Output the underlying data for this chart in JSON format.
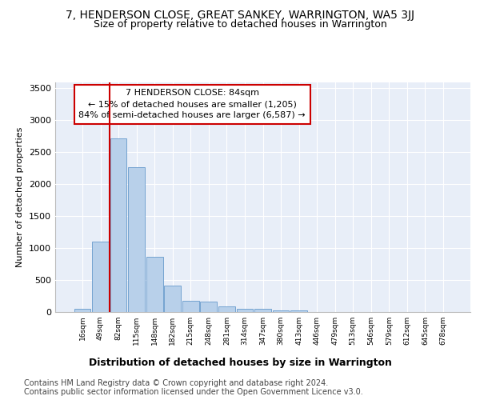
{
  "title": "7, HENDERSON CLOSE, GREAT SANKEY, WARRINGTON, WA5 3JJ",
  "subtitle": "Size of property relative to detached houses in Warrington",
  "xlabel": "Distribution of detached houses by size in Warrington",
  "ylabel": "Number of detached properties",
  "bin_labels": [
    "16sqm",
    "49sqm",
    "82sqm",
    "115sqm",
    "148sqm",
    "182sqm",
    "215sqm",
    "248sqm",
    "281sqm",
    "314sqm",
    "347sqm",
    "380sqm",
    "413sqm",
    "446sqm",
    "479sqm",
    "513sqm",
    "546sqm",
    "579sqm",
    "612sqm",
    "645sqm",
    "678sqm"
  ],
  "bar_values": [
    50,
    1100,
    2720,
    2270,
    860,
    410,
    170,
    160,
    90,
    55,
    45,
    30,
    25,
    5,
    0,
    0,
    0,
    0,
    0,
    0,
    0
  ],
  "bar_color": "#b8d0ea",
  "bar_edgecolor": "#6699cc",
  "vline_bin_index": 2,
  "vline_color": "#cc0000",
  "annotation_text": "7 HENDERSON CLOSE: 84sqm\n← 15% of detached houses are smaller (1,205)\n84% of semi-detached houses are larger (6,587) →",
  "annotation_box_color": "#ffffff",
  "annotation_box_edgecolor": "#cc0000",
  "ylim": [
    0,
    3600
  ],
  "yticks": [
    0,
    500,
    1000,
    1500,
    2000,
    2500,
    3000,
    3500
  ],
  "bg_color": "#e8eef8",
  "footer_line1": "Contains HM Land Registry data © Crown copyright and database right 2024.",
  "footer_line2": "Contains public sector information licensed under the Open Government Licence v3.0.",
  "title_fontsize": 10,
  "subtitle_fontsize": 9,
  "xlabel_fontsize": 9,
  "ylabel_fontsize": 8,
  "annotation_fontsize": 8,
  "footer_fontsize": 7
}
